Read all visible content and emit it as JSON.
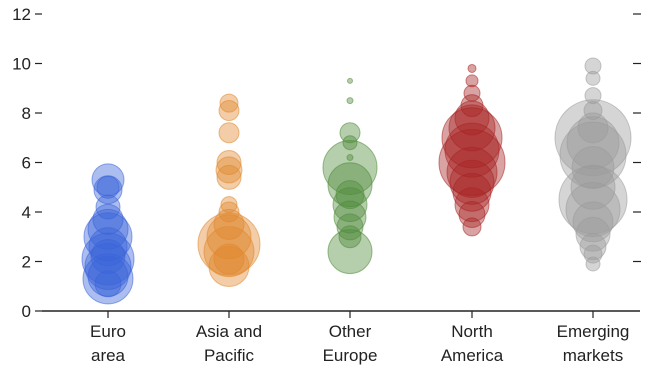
{
  "chart_data": {
    "type": "scatter",
    "title": "",
    "xlabel": "",
    "ylabel": "",
    "ylim": [
      0,
      12
    ],
    "yticks": [
      0,
      2,
      4,
      6,
      8,
      10,
      12
    ],
    "y_tick_labels": [
      "0",
      "2",
      "4",
      "6",
      "8",
      "10",
      "12"
    ],
    "grid": false,
    "right_axis_ticks": true,
    "categories": [
      [
        "Euro",
        "area"
      ],
      [
        "Asia and",
        "Pacific"
      ],
      [
        "Other",
        "Europe"
      ],
      [
        "North",
        "America"
      ],
      [
        "Emerging",
        "markets"
      ]
    ],
    "series": [
      {
        "color": "#3a63d8",
        "points": [
          {
            "y": 5.3,
            "size": 16
          },
          {
            "y": 4.9,
            "size": 14
          },
          {
            "y": 5.0,
            "size": 11
          },
          {
            "y": 4.2,
            "size": 12
          },
          {
            "y": 3.7,
            "size": 15
          },
          {
            "y": 3.3,
            "size": 20
          },
          {
            "y": 3.0,
            "size": 24
          },
          {
            "y": 2.6,
            "size": 19
          },
          {
            "y": 2.2,
            "size": 17
          },
          {
            "y": 1.8,
            "size": 23
          },
          {
            "y": 1.4,
            "size": 20
          },
          {
            "y": 1.1,
            "size": 13
          },
          {
            "y": 2.1,
            "size": 26
          },
          {
            "y": 1.3,
            "size": 25
          }
        ]
      },
      {
        "color": "#e0872e",
        "points": [
          {
            "y": 8.4,
            "size": 9
          },
          {
            "y": 8.1,
            "size": 10
          },
          {
            "y": 7.2,
            "size": 10
          },
          {
            "y": 6.0,
            "size": 12
          },
          {
            "y": 5.7,
            "size": 13
          },
          {
            "y": 5.4,
            "size": 12
          },
          {
            "y": 4.3,
            "size": 8
          },
          {
            "y": 4.0,
            "size": 10
          },
          {
            "y": 3.5,
            "size": 15
          },
          {
            "y": 3.0,
            "size": 22
          },
          {
            "y": 2.7,
            "size": 31
          },
          {
            "y": 2.4,
            "size": 25
          },
          {
            "y": 2.1,
            "size": 15
          },
          {
            "y": 1.8,
            "size": 20
          }
        ]
      },
      {
        "color": "#4f8a3a",
        "points": [
          {
            "y": 9.3,
            "size": 2.5
          },
          {
            "y": 8.5,
            "size": 3
          },
          {
            "y": 7.2,
            "size": 10
          },
          {
            "y": 6.8,
            "size": 7
          },
          {
            "y": 6.2,
            "size": 3
          },
          {
            "y": 5.8,
            "size": 27
          },
          {
            "y": 5.1,
            "size": 22
          },
          {
            "y": 4.7,
            "size": 14
          },
          {
            "y": 4.3,
            "size": 17
          },
          {
            "y": 3.8,
            "size": 16
          },
          {
            "y": 3.4,
            "size": 13
          },
          {
            "y": 3.0,
            "size": 11
          },
          {
            "y": 2.4,
            "size": 22
          }
        ]
      },
      {
        "color": "#a82424",
        "points": [
          {
            "y": 9.8,
            "size": 4
          },
          {
            "y": 9.3,
            "size": 6
          },
          {
            "y": 8.8,
            "size": 8
          },
          {
            "y": 8.3,
            "size": 11
          },
          {
            "y": 7.8,
            "size": 17
          },
          {
            "y": 7.4,
            "size": 23
          },
          {
            "y": 7.0,
            "size": 30
          },
          {
            "y": 6.5,
            "size": 27
          },
          {
            "y": 6.0,
            "size": 33
          },
          {
            "y": 5.6,
            "size": 25
          },
          {
            "y": 5.2,
            "size": 22
          },
          {
            "y": 4.8,
            "size": 19
          },
          {
            "y": 4.3,
            "size": 17
          },
          {
            "y": 3.9,
            "size": 13
          },
          {
            "y": 3.4,
            "size": 9
          }
        ]
      },
      {
        "color": "#9a9a9a",
        "points": [
          {
            "y": 9.9,
            "size": 8
          },
          {
            "y": 9.4,
            "size": 7
          },
          {
            "y": 8.7,
            "size": 8
          },
          {
            "y": 8.1,
            "size": 9
          },
          {
            "y": 7.4,
            "size": 15
          },
          {
            "y": 7.0,
            "size": 38
          },
          {
            "y": 6.8,
            "size": 26
          },
          {
            "y": 6.3,
            "size": 33
          },
          {
            "y": 5.8,
            "size": 21
          },
          {
            "y": 5.0,
            "size": 22
          },
          {
            "y": 4.5,
            "size": 34
          },
          {
            "y": 4.1,
            "size": 27
          },
          {
            "y": 3.6,
            "size": 20
          },
          {
            "y": 3.1,
            "size": 17
          },
          {
            "y": 2.6,
            "size": 13
          },
          {
            "y": 2.3,
            "size": 9
          },
          {
            "y": 1.9,
            "size": 7
          }
        ]
      }
    ]
  }
}
